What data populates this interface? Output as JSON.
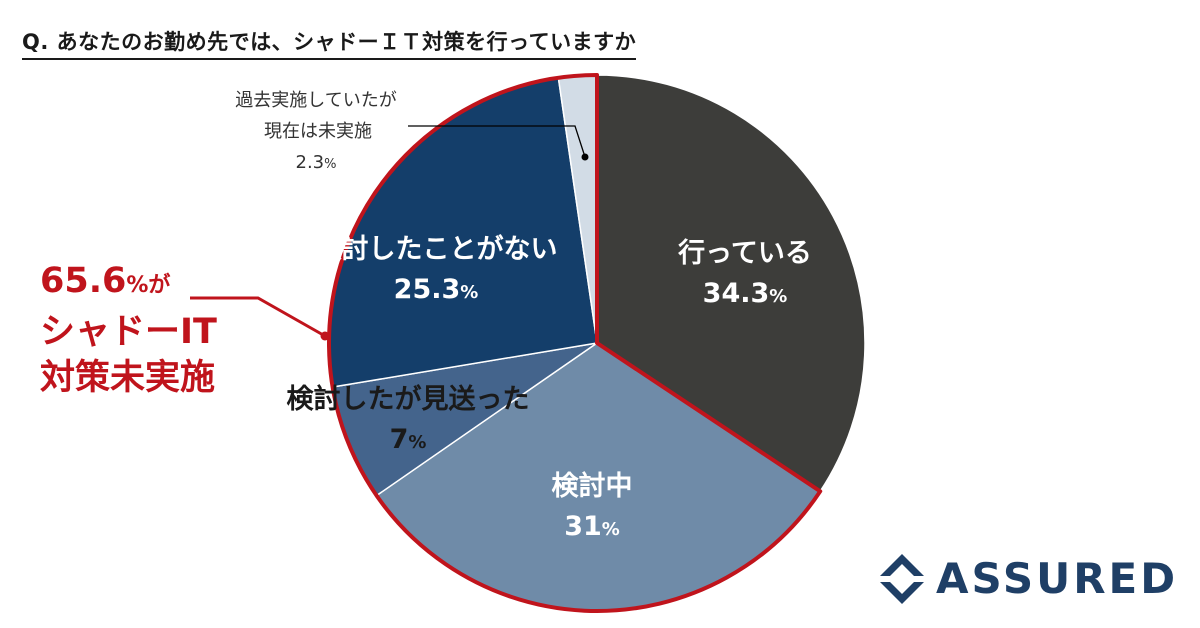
{
  "question": "Q. あなたのお勤め先では、シャドーＩＴ対策を行っていますか",
  "callout": {
    "value": "65.6",
    "suffix": "%が",
    "line2": "シャドーIT",
    "line3": "対策未実施"
  },
  "logo": {
    "text": "ASSURED",
    "color": "#1f3f66"
  },
  "colors": {
    "highlight": "#c0141c",
    "leader_line": "#000000"
  },
  "chart_data": {
    "type": "pie",
    "start": "12 o'clock",
    "direction": "clockwise",
    "unit": "%",
    "slices": [
      {
        "name": "行っている",
        "value": 34.3,
        "color": "#3d3d3a",
        "label_value": "34.3"
      },
      {
        "name": "検討中",
        "value": 31,
        "color": "#6f8ba8",
        "label_value": "31"
      },
      {
        "name": "検討したが見送った",
        "value": 7,
        "color": "#44648c",
        "label_value": "7"
      },
      {
        "name": "検討したことがない",
        "value": 25.3,
        "color": "#143e6a",
        "label_value": "25.3"
      },
      {
        "name": "過去実施していたが現在は未実施",
        "value": 2.3,
        "color": "#d2dce6",
        "label_value": "2.3",
        "label_lines": [
          "過去実施していたが",
          "現在は未実施"
        ]
      }
    ],
    "highlight_group": {
      "slices": [
        "検討中",
        "検討したが見送った",
        "検討したことがない",
        "過去実施していたが現在は未実施"
      ],
      "total": 65.6
    }
  }
}
